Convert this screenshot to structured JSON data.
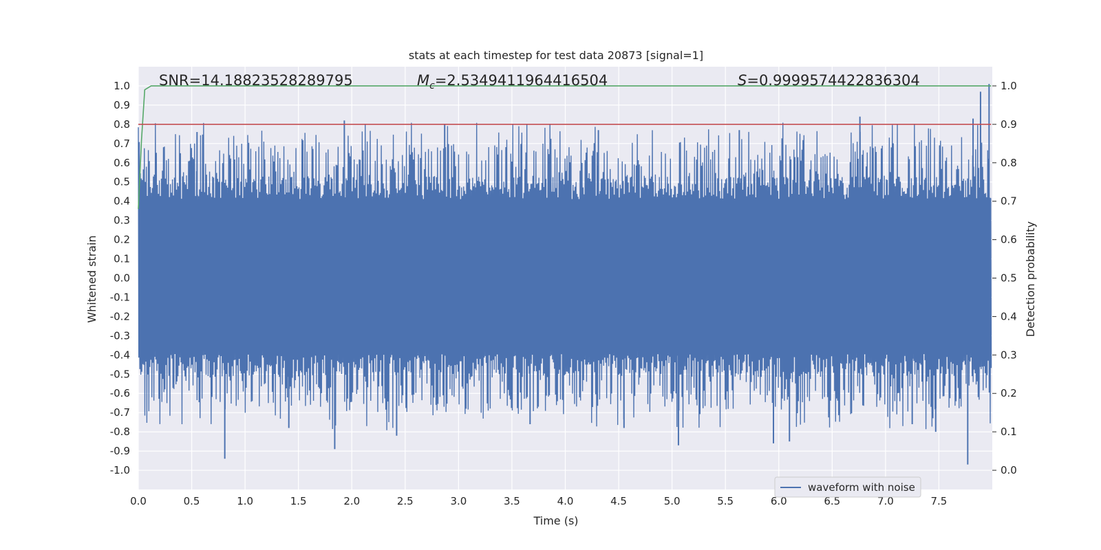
{
  "chart_data": {
    "type": "line",
    "title": "stats at each timestep for test data 20873 [signal=1]",
    "xlabel": "Time (s)",
    "ylabel": "Whitened strain",
    "y2label": "Detection probability",
    "xlim": [
      0.0,
      8.0
    ],
    "ylim": [
      -1.1,
      1.1
    ],
    "y2lim": [
      -0.05,
      1.05
    ],
    "xticks": [
      0.0,
      0.5,
      1.0,
      1.5,
      2.0,
      2.5,
      3.0,
      3.5,
      4.0,
      4.5,
      5.0,
      5.5,
      6.0,
      6.5,
      7.0,
      7.5
    ],
    "xtick_labels": [
      "0.0",
      "0.5",
      "1.0",
      "1.5",
      "2.0",
      "2.5",
      "3.0",
      "3.5",
      "4.0",
      "4.5",
      "5.0",
      "5.5",
      "6.0",
      "6.5",
      "7.0",
      "7.5"
    ],
    "yticks": [
      1.0,
      0.9,
      0.8,
      0.7,
      0.6,
      0.5,
      0.4,
      0.3,
      0.2,
      0.1,
      0.0,
      -0.1,
      -0.2,
      -0.3,
      -0.4,
      -0.5,
      -0.6,
      -0.7,
      -0.8,
      -0.9,
      -1.0
    ],
    "ytick_labels": [
      "1.0",
      "0.9",
      "0.8",
      "0.7",
      "0.6",
      "0.5",
      "0.4",
      "0.3",
      "0.2",
      "0.1",
      "0.0",
      "-0.1",
      "-0.2",
      "-0.3",
      "-0.4",
      "-0.5",
      "-0.6",
      "-0.7",
      "-0.8",
      "-0.9",
      "-1.0"
    ],
    "y2ticks": [
      1.0,
      0.9,
      0.8,
      0.7,
      0.6,
      0.5,
      0.4,
      0.3,
      0.2,
      0.1,
      0.0
    ],
    "y2tick_labels": [
      "1.0",
      "0.9",
      "0.8",
      "0.7",
      "0.6",
      "0.5",
      "0.4",
      "0.3",
      "0.2",
      "0.1",
      "0.0"
    ],
    "grid": true,
    "legend": {
      "position": "lower-right",
      "entries": [
        "waveform with noise"
      ]
    },
    "annotations": {
      "snr": "SNR=14.18823528289795",
      "mc_symbol": "M",
      "mc_sub": "c",
      "mc_value": "=2.5349411964416504",
      "s_symbol": "S",
      "s_value": "=0.9999574422836304"
    },
    "series": [
      {
        "name": "waveform with noise",
        "axis": "left",
        "color": "#4c72b0",
        "style": "noise",
        "x_range": [
          0.0,
          7.99
        ],
        "core_envelope": [
          -0.38,
          0.41
        ],
        "peaks": [
          {
            "x": 0.81,
            "y": -0.94
          },
          {
            "x": 1.84,
            "y": -0.89
          },
          {
            "x": 1.93,
            "y": 0.82
          },
          {
            "x": 0.55,
            "y": 0.76
          },
          {
            "x": 2.42,
            "y": -0.82
          },
          {
            "x": 3.67,
            "y": -0.76
          },
          {
            "x": 4.31,
            "y": 0.77
          },
          {
            "x": 4.55,
            "y": -0.78
          },
          {
            "x": 5.06,
            "y": -0.87
          },
          {
            "x": 5.63,
            "y": 0.77
          },
          {
            "x": 5.95,
            "y": -0.86
          },
          {
            "x": 6.1,
            "y": -0.85
          },
          {
            "x": 6.76,
            "y": 0.84
          },
          {
            "x": 7.25,
            "y": -0.76
          },
          {
            "x": 7.47,
            "y": -0.8
          },
          {
            "x": 7.77,
            "y": -0.97
          },
          {
            "x": 7.82,
            "y": 0.83
          },
          {
            "x": 7.89,
            "y": 0.97
          },
          {
            "x": 7.97,
            "y": 1.01
          },
          {
            "x": 1.41,
            "y": -0.78
          },
          {
            "x": 2.87,
            "y": 0.8
          }
        ]
      },
      {
        "name": "",
        "axis": "right",
        "color": "#55a868",
        "x": [
          0.0,
          0.03,
          0.06,
          0.12,
          0.2,
          7.99
        ],
        "y": [
          0.68,
          0.86,
          0.99,
          1.0,
          1.0,
          1.0
        ]
      },
      {
        "name": "",
        "axis": "right",
        "color": "#c44e52",
        "x": [
          0.0,
          7.99
        ],
        "y": [
          0.9,
          0.9
        ]
      }
    ]
  }
}
